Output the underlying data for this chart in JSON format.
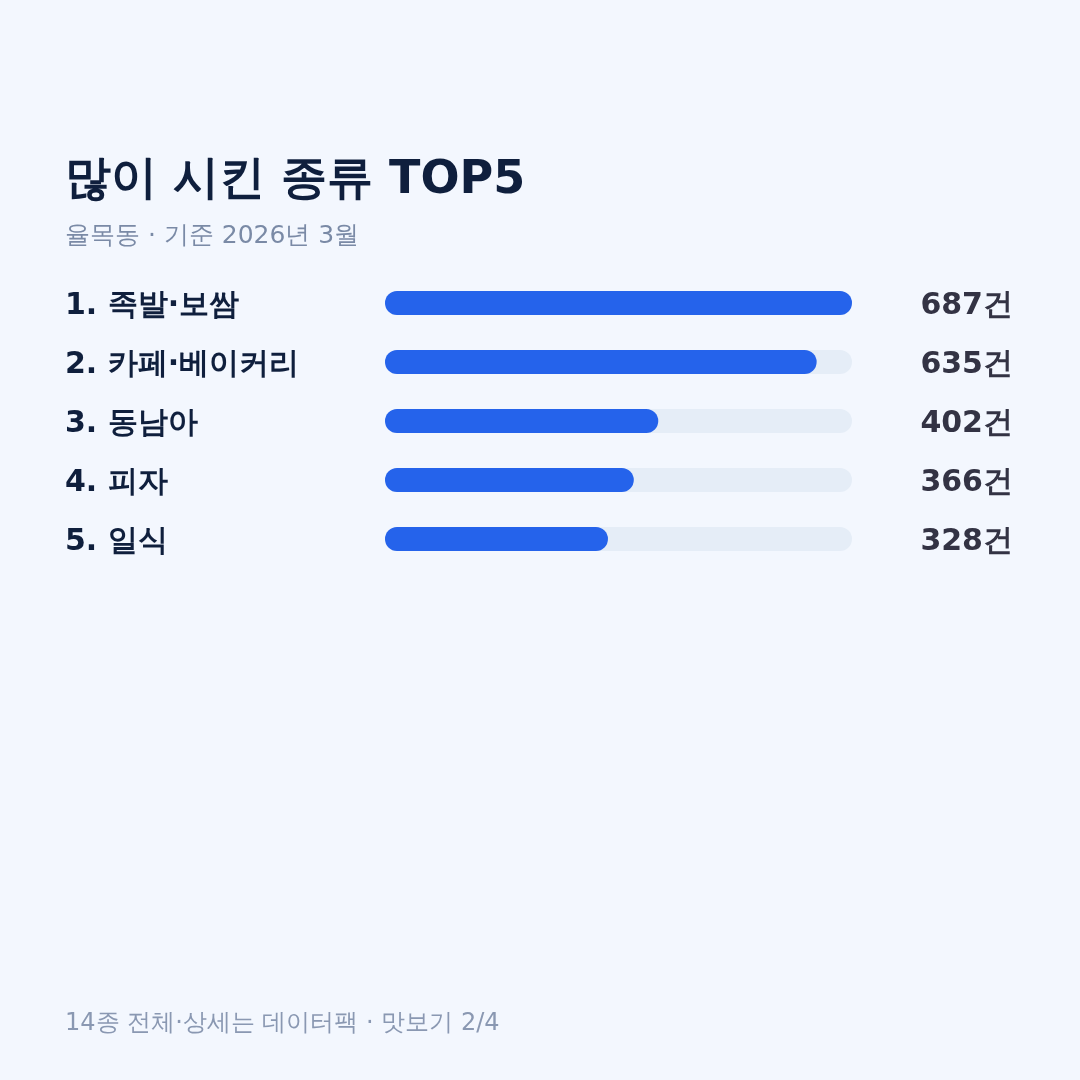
{
  "chart_data": {
    "type": "bar",
    "orientation": "horizontal",
    "title": "많이 시킨 종류 TOP5",
    "subtitle": "율목동 · 기준 2026년 3월",
    "categories": [
      "1. 족발·보쌈",
      "2. 카페·베이커리",
      "3. 동남아",
      "4. 피자",
      "5. 일식"
    ],
    "values": [
      687,
      635,
      402,
      366,
      328
    ],
    "value_labels": [
      "687건",
      "635건",
      "402건",
      "366건",
      "328건"
    ],
    "color": "#2563eb",
    "xlim": [
      0,
      687
    ],
    "tick_labels": "y",
    "annotations": [
      "14종 전체·상세는 데이터팩 · 맛보기 2/4"
    ]
  }
}
